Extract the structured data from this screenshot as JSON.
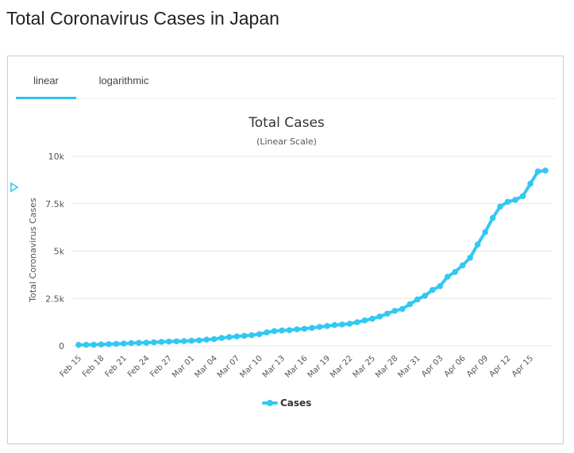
{
  "page": {
    "title": "Total Coronavirus Cases in Japan"
  },
  "tabs": [
    {
      "label": "linear",
      "active": true
    },
    {
      "label": "logarithmic",
      "active": false
    }
  ],
  "colors": {
    "series": "#33c8f2",
    "tab_underline": "#2fc3f0",
    "grid": "#e6e6e6"
  },
  "icons": {
    "side_marker": "play-triangle-icon"
  },
  "chart_data": {
    "type": "line",
    "title": "Total Cases",
    "subtitle": "(Linear Scale)",
    "ylabel": "Total Coronavirus Cases",
    "xlabel": "",
    "ylim": [
      0,
      10000
    ],
    "yticks": [
      0,
      2500,
      5000,
      7500,
      10000
    ],
    "ytick_labels": [
      "0",
      "2.5k",
      "5k",
      "7.5k",
      "10k"
    ],
    "xtick_labels": [
      "Feb 15",
      "Feb 18",
      "Feb 21",
      "Feb 24",
      "Feb 27",
      "Mar 01",
      "Mar 04",
      "Mar 07",
      "Mar 10",
      "Mar 13",
      "Mar 16",
      "Mar 19",
      "Mar 22",
      "Mar 25",
      "Mar 28",
      "Mar 31",
      "Apr 03",
      "Apr 06",
      "Apr 09",
      "Apr 12",
      "Apr 15"
    ],
    "grid": true,
    "legend_position": "bottom-center",
    "x": [
      "Feb 15",
      "Feb 16",
      "Feb 17",
      "Feb 18",
      "Feb 19",
      "Feb 20",
      "Feb 21",
      "Feb 22",
      "Feb 23",
      "Feb 24",
      "Feb 25",
      "Feb 26",
      "Feb 27",
      "Feb 28",
      "Feb 29",
      "Mar 01",
      "Mar 02",
      "Mar 03",
      "Mar 04",
      "Mar 05",
      "Mar 06",
      "Mar 07",
      "Mar 08",
      "Mar 09",
      "Mar 10",
      "Mar 11",
      "Mar 12",
      "Mar 13",
      "Mar 14",
      "Mar 15",
      "Mar 16",
      "Mar 17",
      "Mar 18",
      "Mar 19",
      "Mar 20",
      "Mar 21",
      "Mar 22",
      "Mar 23",
      "Mar 24",
      "Mar 25",
      "Mar 26",
      "Mar 27",
      "Mar 28",
      "Mar 29",
      "Mar 30",
      "Mar 31",
      "Apr 01",
      "Apr 02",
      "Apr 03",
      "Apr 04",
      "Apr 05",
      "Apr 06",
      "Apr 07",
      "Apr 08",
      "Apr 09",
      "Apr 10",
      "Apr 11",
      "Apr 12",
      "Apr 13",
      "Apr 14",
      "Apr 15",
      "Apr 16",
      "Apr 17"
    ],
    "series": [
      {
        "name": "Cases",
        "values": [
          53,
          59,
          66,
          74,
          94,
          105,
          122,
          147,
          159,
          170,
          189,
          214,
          228,
          241,
          256,
          274,
          293,
          331,
          360,
          420,
          461,
          502,
          530,
          567,
          621,
          716,
          780,
          814,
          831,
          878,
          905,
          950,
          1000,
          1050,
          1100,
          1130,
          1170,
          1250,
          1340,
          1430,
          1550,
          1700,
          1850,
          1950,
          2200,
          2450,
          2650,
          2950,
          3150,
          3650,
          3900,
          4250,
          4650,
          5350,
          6000,
          6750,
          7350,
          7600,
          7700,
          7900,
          8550,
          9200,
          9250
        ]
      }
    ]
  }
}
